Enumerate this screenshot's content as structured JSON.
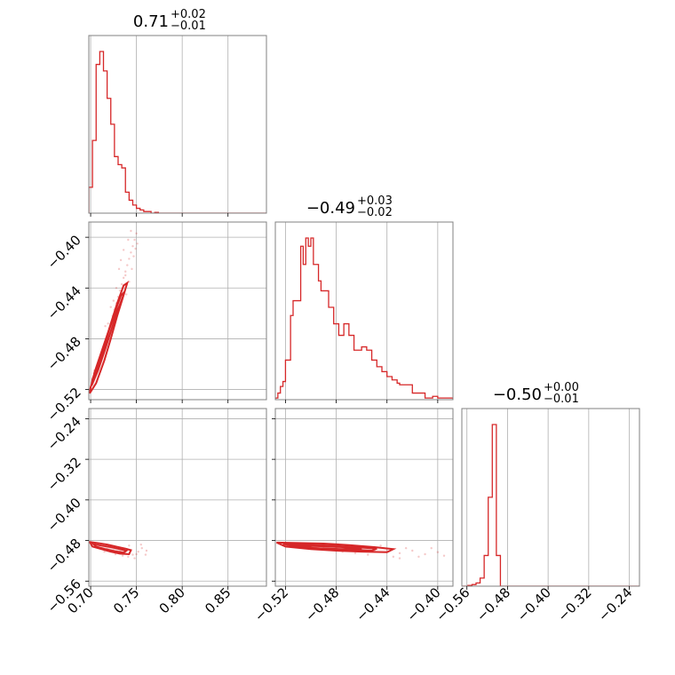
{
  "colors": {
    "series": "#d62728",
    "grid": "#b0b0b0",
    "frame": "#808080"
  },
  "chart_data": {
    "type": "corner",
    "grid": true,
    "parameters": 3,
    "titles": [
      {
        "value": "0.71",
        "upper": "+0.02",
        "lower": "−0.01"
      },
      {
        "value": "−0.49",
        "upper": "+0.03",
        "lower": "−0.02"
      },
      {
        "value": "−0.50",
        "upper": "+0.00",
        "lower": "−0.01"
      }
    ],
    "ranges": [
      [
        0.698,
        0.892
      ],
      [
        -0.528,
        -0.388
      ],
      [
        -0.57,
        -0.22
      ]
    ],
    "ticks": [
      {
        "values": [
          0.7,
          0.75,
          0.8,
          0.85
        ],
        "labels": [
          "0.70",
          "0.75",
          "0.80",
          "0.85"
        ]
      },
      {
        "values": [
          -0.52,
          -0.48,
          -0.44,
          -0.4
        ],
        "labels": [
          "−0.52",
          "−0.48",
          "−0.44",
          "−0.40"
        ]
      },
      {
        "values": [
          -0.56,
          -0.48,
          -0.4,
          -0.32,
          -0.24
        ],
        "labels": [
          "−0.56",
          "−0.48",
          "−0.40",
          "−0.32",
          "−0.24"
        ]
      }
    ],
    "histograms": [
      {
        "param": 0,
        "edges": [
          0.698,
          0.702,
          0.706,
          0.71,
          0.714,
          0.718,
          0.722,
          0.726,
          0.73,
          0.734,
          0.738,
          0.742,
          0.746,
          0.75,
          0.754,
          0.758,
          0.762,
          0.766,
          0.77,
          0.774,
          0.778,
          0.782,
          0.892
        ],
        "counts": [
          0.16,
          0.45,
          0.92,
          1.0,
          0.88,
          0.71,
          0.55,
          0.35,
          0.3,
          0.28,
          0.13,
          0.08,
          0.05,
          0.03,
          0.02,
          0.01,
          0.01,
          0.0,
          0.005,
          0.0,
          0.0,
          0.0
        ]
      },
      {
        "param": 1,
        "edges": [
          -0.528,
          -0.526,
          -0.524,
          -0.522,
          -0.52,
          -0.518,
          -0.516,
          -0.514,
          -0.512,
          -0.51,
          -0.508,
          -0.506,
          -0.504,
          -0.502,
          -0.5,
          -0.498,
          -0.496,
          -0.494,
          -0.492,
          -0.49,
          -0.488,
          -0.486,
          -0.484,
          -0.482,
          -0.48,
          -0.478,
          -0.476,
          -0.474,
          -0.472,
          -0.47,
          -0.468,
          -0.466,
          -0.464,
          -0.462,
          -0.46,
          -0.458,
          -0.456,
          -0.454,
          -0.452,
          -0.45,
          -0.448,
          -0.446,
          -0.444,
          -0.442,
          -0.44,
          -0.438,
          -0.436,
          -0.434,
          -0.432,
          -0.43,
          -0.428,
          -0.426,
          -0.424,
          -0.422,
          -0.42,
          -0.418,
          -0.416,
          -0.414,
          -0.412,
          -0.41,
          -0.408,
          -0.406,
          -0.404,
          -0.402,
          -0.4,
          -0.398,
          -0.396,
          -0.394,
          -0.392,
          -0.39,
          -0.388
        ],
        "counts": [
          0.01,
          0.04,
          0.08,
          0.11,
          0.24,
          0.24,
          0.51,
          0.6,
          0.6,
          0.6,
          0.93,
          0.82,
          0.98,
          0.93,
          0.98,
          0.82,
          0.82,
          0.72,
          0.66,
          0.66,
          0.66,
          0.56,
          0.56,
          0.46,
          0.46,
          0.39,
          0.39,
          0.46,
          0.46,
          0.39,
          0.39,
          0.3,
          0.3,
          0.3,
          0.32,
          0.32,
          0.3,
          0.3,
          0.24,
          0.24,
          0.2,
          0.2,
          0.17,
          0.17,
          0.14,
          0.14,
          0.12,
          0.12,
          0.1,
          0.09,
          0.09,
          0.09,
          0.09,
          0.09,
          0.04,
          0.04,
          0.04,
          0.04,
          0.04,
          0.01,
          0.01,
          0.01,
          0.02,
          0.02,
          0.01,
          0.01,
          0.01,
          0.01,
          0.01,
          0.01
        ]
      },
      {
        "param": 2,
        "edges": [
          -0.57,
          -0.566,
          -0.562,
          -0.558,
          -0.554,
          -0.55,
          -0.546,
          -0.542,
          -0.538,
          -0.534,
          -0.53,
          -0.526,
          -0.522,
          -0.518,
          -0.514,
          -0.51,
          -0.506,
          -0.502,
          -0.498,
          -0.494,
          -0.49,
          -0.486,
          -0.482,
          -0.478,
          -0.22
        ],
        "counts": [
          0.0,
          0.0,
          0.0,
          0.005,
          0.005,
          0.01,
          0.01,
          0.02,
          0.02,
          0.05,
          0.05,
          0.19,
          0.19,
          0.55,
          0.55,
          1.0,
          1.0,
          0.19,
          0.19,
          0.0,
          0.0,
          0.0,
          0.0,
          0.0
        ]
      }
    ],
    "pairs": [
      {
        "x_param": 0,
        "y_param": 1,
        "points": [
          [
            0.699,
            -0.52
          ],
          [
            0.702,
            -0.515
          ],
          [
            0.705,
            -0.51
          ],
          [
            0.708,
            -0.502
          ],
          [
            0.71,
            -0.497
          ],
          [
            0.713,
            -0.49
          ],
          [
            0.715,
            -0.485
          ],
          [
            0.718,
            -0.478
          ],
          [
            0.72,
            -0.472
          ],
          [
            0.722,
            -0.468
          ],
          [
            0.724,
            -0.462
          ],
          [
            0.726,
            -0.457
          ],
          [
            0.728,
            -0.452
          ],
          [
            0.73,
            -0.447
          ],
          [
            0.732,
            -0.442
          ],
          [
            0.734,
            -0.437
          ],
          [
            0.736,
            -0.432
          ],
          [
            0.738,
            -0.427
          ],
          [
            0.74,
            -0.422
          ],
          [
            0.742,
            -0.417
          ],
          [
            0.744,
            -0.412
          ],
          [
            0.746,
            -0.407
          ],
          [
            0.748,
            -0.402
          ],
          [
            0.75,
            -0.397
          ],
          [
            0.736,
            -0.41
          ],
          [
            0.742,
            -0.435
          ],
          [
            0.728,
            -0.44
          ],
          [
            0.745,
            -0.425
          ],
          [
            0.733,
            -0.418
          ],
          [
            0.739,
            -0.445
          ],
          [
            0.725,
            -0.45
          ],
          [
            0.747,
            -0.415
          ],
          [
            0.751,
            -0.405
          ],
          [
            0.744,
            -0.395
          ],
          [
            0.738,
            -0.43
          ],
          [
            0.722,
            -0.455
          ],
          [
            0.716,
            -0.47
          ],
          [
            0.712,
            -0.495
          ],
          [
            0.704,
            -0.505
          ],
          [
            0.731,
            -0.425
          ],
          [
            0.749,
            -0.409
          ],
          [
            0.741,
            -0.402
          ],
          [
            0.735,
            -0.44
          ],
          [
            0.727,
            -0.463
          ],
          [
            0.719,
            -0.468
          ]
        ],
        "contours": [
          [
            [
              0.699,
              -0.523
            ],
            [
              0.706,
              -0.515
            ],
            [
              0.715,
              -0.497
            ],
            [
              0.722,
              -0.48
            ],
            [
              0.729,
              -0.462
            ],
            [
              0.735,
              -0.448
            ],
            [
              0.74,
              -0.436
            ],
            [
              0.736,
              -0.438
            ],
            [
              0.729,
              -0.452
            ],
            [
              0.722,
              -0.468
            ],
            [
              0.715,
              -0.485
            ],
            [
              0.707,
              -0.503
            ],
            [
              0.7,
              -0.518
            ],
            [
              0.699,
              -0.523
            ]
          ],
          [
            [
              0.701,
              -0.517
            ],
            [
              0.708,
              -0.505
            ],
            [
              0.716,
              -0.488
            ],
            [
              0.724,
              -0.47
            ],
            [
              0.731,
              -0.455
            ],
            [
              0.737,
              -0.443
            ],
            [
              0.733,
              -0.446
            ],
            [
              0.725,
              -0.462
            ],
            [
              0.717,
              -0.48
            ],
            [
              0.709,
              -0.497
            ],
            [
              0.702,
              -0.512
            ],
            [
              0.701,
              -0.517
            ]
          ],
          [
            [
              0.703,
              -0.512
            ],
            [
              0.711,
              -0.497
            ],
            [
              0.718,
              -0.482
            ],
            [
              0.726,
              -0.466
            ],
            [
              0.733,
              -0.452
            ],
            [
              0.727,
              -0.46
            ],
            [
              0.719,
              -0.475
            ],
            [
              0.711,
              -0.492
            ],
            [
              0.704,
              -0.507
            ],
            [
              0.703,
              -0.512
            ]
          ]
        ]
      },
      {
        "x_param": 0,
        "y_param": 2,
        "points": [
          [
            0.705,
            -0.49
          ],
          [
            0.712,
            -0.495
          ],
          [
            0.718,
            -0.497
          ],
          [
            0.725,
            -0.5
          ],
          [
            0.732,
            -0.502
          ],
          [
            0.738,
            -0.505
          ],
          [
            0.744,
            -0.5
          ],
          [
            0.75,
            -0.507
          ],
          [
            0.756,
            -0.495
          ],
          [
            0.761,
            -0.5
          ],
          [
            0.742,
            -0.49
          ],
          [
            0.735,
            -0.51
          ],
          [
            0.728,
            -0.495
          ],
          [
            0.748,
            -0.515
          ],
          [
            0.755,
            -0.488
          ],
          [
            0.74,
            -0.497
          ],
          [
            0.722,
            -0.492
          ],
          [
            0.715,
            -0.502
          ],
          [
            0.746,
            -0.508
          ],
          [
            0.733,
            -0.495
          ],
          [
            0.752,
            -0.502
          ],
          [
            0.708,
            -0.487
          ],
          [
            0.727,
            -0.507
          ],
          [
            0.741,
            -0.512
          ],
          [
            0.76,
            -0.508
          ]
        ],
        "contours": [
          [
            [
              0.699,
              -0.483
            ],
            [
              0.708,
              -0.485
            ],
            [
              0.718,
              -0.488
            ],
            [
              0.728,
              -0.492
            ],
            [
              0.738,
              -0.496
            ],
            [
              0.744,
              -0.499
            ],
            [
              0.742,
              -0.507
            ],
            [
              0.732,
              -0.506
            ],
            [
              0.722,
              -0.502
            ],
            [
              0.712,
              -0.497
            ],
            [
              0.702,
              -0.492
            ],
            [
              0.699,
              -0.483
            ]
          ],
          [
            [
              0.703,
              -0.487
            ],
            [
              0.712,
              -0.49
            ],
            [
              0.722,
              -0.493
            ],
            [
              0.732,
              -0.497
            ],
            [
              0.739,
              -0.5
            ],
            [
              0.736,
              -0.504
            ],
            [
              0.726,
              -0.501
            ],
            [
              0.716,
              -0.497
            ],
            [
              0.706,
              -0.492
            ],
            [
              0.703,
              -0.487
            ]
          ]
        ]
      },
      {
        "x_param": 1,
        "y_param": 2,
        "points": [
          [
            -0.52,
            -0.485
          ],
          [
            -0.51,
            -0.488
          ],
          [
            -0.5,
            -0.49
          ],
          [
            -0.49,
            -0.492
          ],
          [
            -0.48,
            -0.494
          ],
          [
            -0.47,
            -0.495
          ],
          [
            -0.46,
            -0.497
          ],
          [
            -0.45,
            -0.5
          ],
          [
            -0.44,
            -0.502
          ],
          [
            -0.43,
            -0.505
          ],
          [
            -0.42,
            -0.5
          ],
          [
            -0.41,
            -0.507
          ],
          [
            -0.4,
            -0.503
          ],
          [
            -0.395,
            -0.51
          ],
          [
            -0.435,
            -0.512
          ],
          [
            -0.445,
            -0.49
          ],
          [
            -0.455,
            -0.508
          ],
          [
            -0.425,
            -0.495
          ],
          [
            -0.415,
            -0.512
          ],
          [
            -0.465,
            -0.505
          ],
          [
            -0.405,
            -0.495
          ],
          [
            -0.485,
            -0.487
          ],
          [
            -0.475,
            -0.502
          ],
          [
            -0.43,
            -0.515
          ],
          [
            -0.44,
            -0.497
          ]
        ],
        "contours": [
          [
            [
              -0.527,
              -0.484
            ],
            [
              -0.51,
              -0.485
            ],
            [
              -0.49,
              -0.486
            ],
            [
              -0.47,
              -0.489
            ],
            [
              -0.45,
              -0.493
            ],
            [
              -0.435,
              -0.497
            ],
            [
              -0.44,
              -0.503
            ],
            [
              -0.46,
              -0.502
            ],
            [
              -0.48,
              -0.5
            ],
            [
              -0.5,
              -0.497
            ],
            [
              -0.52,
              -0.492
            ],
            [
              -0.527,
              -0.484
            ]
          ],
          [
            [
              -0.522,
              -0.487
            ],
            [
              -0.505,
              -0.488
            ],
            [
              -0.485,
              -0.49
            ],
            [
              -0.465,
              -0.493
            ],
            [
              -0.448,
              -0.496
            ],
            [
              -0.452,
              -0.5
            ],
            [
              -0.47,
              -0.498
            ],
            [
              -0.49,
              -0.496
            ],
            [
              -0.51,
              -0.493
            ],
            [
              -0.522,
              -0.487
            ]
          ],
          [
            [
              -0.515,
              -0.49
            ],
            [
              -0.495,
              -0.491
            ],
            [
              -0.475,
              -0.493
            ],
            [
              -0.46,
              -0.496
            ],
            [
              -0.478,
              -0.497
            ],
            [
              -0.498,
              -0.495
            ],
            [
              -0.515,
              -0.49
            ]
          ]
        ]
      }
    ]
  }
}
